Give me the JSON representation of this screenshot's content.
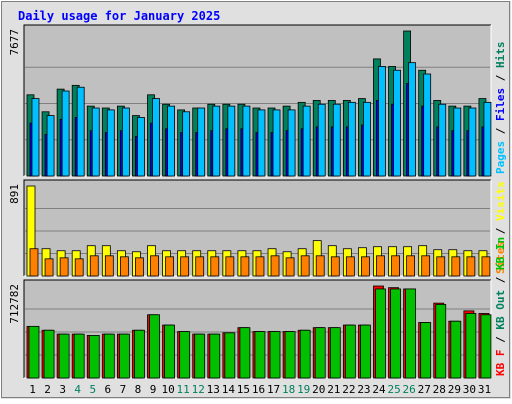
{
  "colors": {
    "background": "#e0e0e0",
    "panel": "#c0c0c0",
    "title": "#0000ff",
    "hits": "#00805c",
    "files": "#0000ff",
    "pages": "#00c0ff",
    "visits": "#ffff00",
    "sites": "#ff8000",
    "kb_in": "#00c000",
    "kb_out": "#00805c",
    "kb_f": "#ff0000",
    "weekend_day": "#00805c",
    "day": "#000000"
  },
  "chart_data": {
    "type": "bar",
    "title": "Daily usage for January 2025",
    "categories": [
      "1",
      "2",
      "3",
      "4",
      "5",
      "6",
      "7",
      "8",
      "9",
      "10",
      "11",
      "12",
      "13",
      "14",
      "15",
      "16",
      "17",
      "18",
      "19",
      "20",
      "21",
      "22",
      "23",
      "24",
      "25",
      "26",
      "27",
      "28",
      "29",
      "30",
      "31"
    ],
    "weekend_days": [
      "4",
      "5",
      "11",
      "12",
      "18",
      "19",
      "25",
      "26"
    ],
    "grid": true,
    "panels": [
      {
        "name": "hits-files-pages",
        "scale_label": "7677",
        "ymax": 7677,
        "legend": [
          "Hits",
          "Files",
          "Pages"
        ],
        "series": [
          {
            "name": "Hits",
            "values": [
              4300,
              3400,
              4600,
              4800,
              3700,
              3600,
              3700,
              3200,
              4300,
              3800,
              3500,
              3600,
              3800,
              3800,
              3800,
              3600,
              3600,
              3700,
              3900,
              4000,
              4000,
              4000,
              4100,
              6200,
              5800,
              7677,
              5600,
              4000,
              3700,
              3700,
              4100
            ]
          },
          {
            "name": "Files",
            "values": [
              2800,
              2200,
              3000,
              3100,
              2400,
              2300,
              2400,
              2100,
              2800,
              2500,
              2300,
              2300,
              2400,
              2500,
              2500,
              2300,
              2300,
              2400,
              2500,
              2600,
              2600,
              2600,
              2700,
              4000,
              3800,
              4900,
              3700,
              2600,
              2400,
              2400,
              2600
            ]
          },
          {
            "name": "Pages",
            "values": [
              4100,
              3200,
              4500,
              4700,
              3600,
              3500,
              3600,
              3100,
              4100,
              3700,
              3400,
              3600,
              3700,
              3700,
              3700,
              3500,
              3500,
              3500,
              3700,
              3800,
              3800,
              3900,
              3900,
              5800,
              5600,
              6000,
              5400,
              3800,
              3600,
              3600,
              3900
            ]
          }
        ]
      },
      {
        "name": "visits-sites",
        "scale_label": "891",
        "ymax": 891,
        "legend": [
          "Visits",
          "Sites"
        ],
        "series": [
          {
            "name": "Visits",
            "values": [
              891,
              270,
              250,
              250,
              300,
              300,
              250,
              240,
              300,
              250,
              250,
              250,
              250,
              250,
              250,
              250,
              270,
              240,
              270,
              350,
              300,
              270,
              280,
              290,
              290,
              290,
              300,
              260,
              260,
              250,
              250
            ]
          },
          {
            "name": "Sites",
            "values": [
              270,
              170,
              180,
              170,
              200,
              200,
              190,
              180,
              200,
              190,
              190,
              190,
              190,
              190,
              190,
              190,
              200,
              180,
              200,
              200,
              190,
              190,
              190,
              200,
              200,
              200,
              200,
              190,
              190,
              190,
              190
            ]
          }
        ]
      },
      {
        "name": "kbytes",
        "scale_label": "712782",
        "ymax": 712782,
        "legend": [
          "KB In",
          "KB Out",
          "KB F"
        ],
        "series": [
          {
            "name": "KB F",
            "values": [
              400000,
              370000,
              340000,
              340000,
              330000,
              340000,
              340000,
              370000,
              490000,
              410000,
              360000,
              340000,
              340000,
              350000,
              390000,
              360000,
              360000,
              360000,
              370000,
              390000,
              390000,
              410000,
              410000,
              712782,
              700000,
              690000,
              430000,
              580000,
              440000,
              520000,
              500000
            ]
          },
          {
            "name": "KB In",
            "values": [
              400000,
              370000,
              340000,
              340000,
              330000,
              340000,
              340000,
              370000,
              490000,
              410000,
              360000,
              340000,
              340000,
              350000,
              390000,
              360000,
              360000,
              360000,
              370000,
              390000,
              390000,
              410000,
              410000,
              690000,
              690000,
              690000,
              430000,
              570000,
              440000,
              500000,
              490000
            ]
          }
        ]
      }
    ]
  }
}
